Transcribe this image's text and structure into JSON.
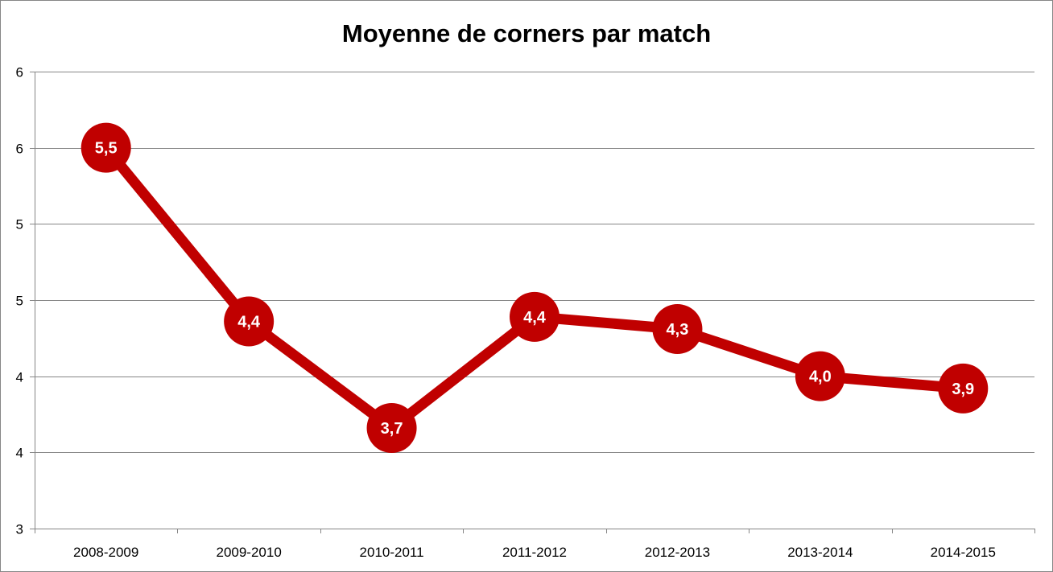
{
  "chart_data": {
    "type": "line",
    "title": "Moyenne de corners par match",
    "xlabel": "",
    "ylabel": "",
    "categories": [
      "2008-2009",
      "2009-2010",
      "2010-2011",
      "2011-2012",
      "2012-2013",
      "2013-2014",
      "2014-2015"
    ],
    "series": [
      {
        "values": [
          5.5,
          4.36,
          3.66,
          4.39,
          4.31,
          4.0,
          3.92
        ],
        "data_labels": [
          "5,5",
          "4,4",
          "3,7",
          "4,4",
          "4,3",
          "4,0",
          "3,9"
        ]
      }
    ],
    "ylim": [
      3,
      6
    ],
    "y_tick_values": [
      3,
      3.5,
      4,
      4.5,
      5,
      5.5,
      6
    ],
    "y_tick_labels": [
      "3",
      "4",
      "4",
      "5",
      "5",
      "6",
      "6"
    ],
    "grid": true,
    "legend": "none",
    "colors": {
      "line": "#c00000",
      "marker": "#c00000",
      "grid": "#868686",
      "axis": "#868686"
    }
  }
}
